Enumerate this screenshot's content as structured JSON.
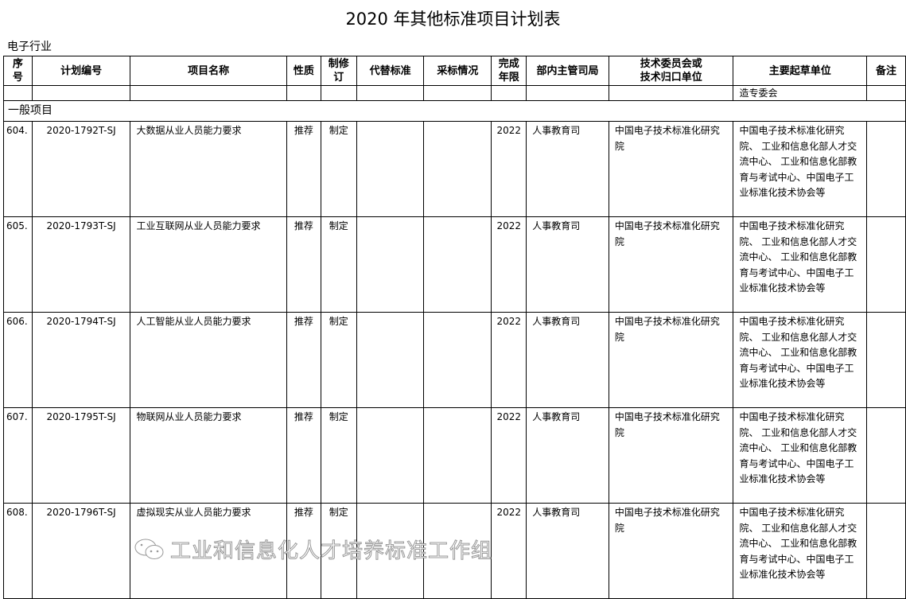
{
  "title": "2020 年其他标准项目计划表",
  "industry": "电子行业",
  "headers": [
    "序号",
    "计划编号",
    "项目名称",
    "性质",
    "制修订",
    "代替标准",
    "采标情况",
    "完成年限",
    "部内主管司局",
    "技术委员会或技术归口单位",
    "主要起草单位",
    "备注"
  ],
  "header_lines": {
    "seq": [
      "序",
      "号"
    ],
    "rev": [
      "制修",
      "订"
    ],
    "year": [
      "完成",
      "年限"
    ],
    "tc": [
      "技术委员会或",
      "技术归口单位"
    ]
  },
  "continuation": "造专委会",
  "section": "一般项目",
  "rows": [
    {
      "seq": "604.",
      "code": "2020-1792T-SJ",
      "name": "大数据从业人员能力要求",
      "nature": "推荐",
      "type": "制定",
      "replace": "",
      "adopt": "",
      "year": "2022",
      "dept": "人事教育司",
      "tc": "中国电子技术标准化研究院",
      "drafter": "中国电子技术标准化研究院、 工业和信息化部人才交流中心、 工业和信息化部教育与考试中心、中国电子工业标准化技术协会等",
      "note": ""
    },
    {
      "seq": "605.",
      "code": "2020-1793T-SJ",
      "name": "工业互联网从业人员能力要求",
      "nature": "推荐",
      "type": "制定",
      "replace": "",
      "adopt": "",
      "year": "2022",
      "dept": "人事教育司",
      "tc": "中国电子技术标准化研究院",
      "drafter": "中国电子技术标准化研究院、 工业和信息化部人才交流中心、 工业和信息化部教育与考试中心、中国电子工业标准化技术协会等",
      "note": ""
    },
    {
      "seq": "606.",
      "code": "2020-1794T-SJ",
      "name": "人工智能从业人员能力要求",
      "nature": "推荐",
      "type": "制定",
      "replace": "",
      "adopt": "",
      "year": "2022",
      "dept": "人事教育司",
      "tc": "中国电子技术标准化研究院",
      "drafter": "中国电子技术标准化研究院、 工业和信息化部人才交流中心、 工业和信息化部教育与考试中心、中国电子工业标准化技术协会等",
      "note": ""
    },
    {
      "seq": "607.",
      "code": "2020-1795T-SJ",
      "name": "物联网从业人员能力要求",
      "nature": "推荐",
      "type": "制定",
      "replace": "",
      "adopt": "",
      "year": "2022",
      "dept": "人事教育司",
      "tc": "中国电子技术标准化研究院",
      "drafter": "中国电子技术标准化研究院、 工业和信息化部人才交流中心、 工业和信息化部教育与考试中心、中国电子工业标准化技术协会等",
      "note": ""
    },
    {
      "seq": "608.",
      "code": "2020-1796T-SJ",
      "name": "虚拟现实从业人员能力要求",
      "nature": "推荐",
      "type": "制定",
      "replace": "",
      "adopt": "",
      "year": "2022",
      "dept": "人事教育司",
      "tc": "中国电子技术标准化研究院",
      "drafter": "中国电子技术标准化研究院、 工业和信息化部人才交流中心、 工业和信息化部教育与考试中心、中国电子工业标准化技术协会等",
      "note": ""
    }
  ],
  "watermark": "工业和信息化人才培养标准工作组"
}
